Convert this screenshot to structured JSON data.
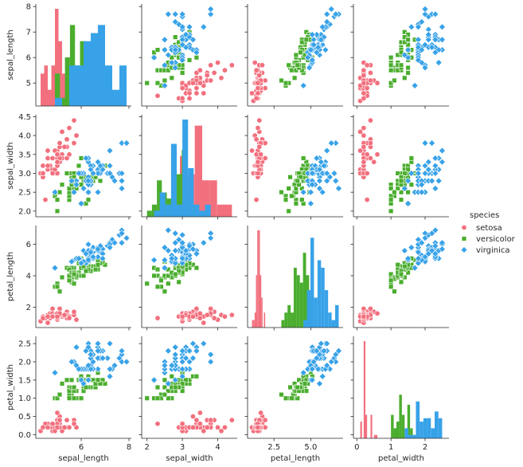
{
  "chart_data": {
    "type": "pairplot",
    "variables": [
      "sepal_length",
      "sepal_width",
      "petal_length",
      "petal_width"
    ],
    "hue": "species",
    "legend": {
      "title": "species",
      "position": "right",
      "entries": [
        {
          "name": "setosa",
          "color": "#f2707e",
          "marker": "circle"
        },
        {
          "name": "versicolor",
          "color": "#4aad2e",
          "marker": "square"
        },
        {
          "name": "virginica",
          "color": "#38a2e8",
          "marker": "diamond"
        }
      ]
    },
    "axes": {
      "sepal_length": {
        "range": [
          4.1,
          8.1
        ],
        "ticks": [
          6,
          8
        ],
        "tick_labels": [
          "6",
          "8"
        ],
        "y_range": [
          4.1,
          8.1
        ],
        "y_ticks": [
          5,
          6,
          7,
          8
        ],
        "y_tick_labels": [
          "5",
          "6",
          "7",
          "8"
        ]
      },
      "sepal_width": {
        "range": [
          1.85,
          4.55
        ],
        "ticks": [
          2,
          3,
          4
        ],
        "tick_labels": [
          "2",
          "3",
          "4"
        ],
        "y_range": [
          1.85,
          4.55
        ],
        "y_ticks": [
          2.0,
          2.5,
          3.0,
          3.5,
          4.0,
          4.5
        ],
        "y_tick_labels": [
          "2.0",
          "2.5",
          "3.0",
          "3.5",
          "4.0",
          "4.5"
        ]
      },
      "petal_length": {
        "range": [
          0.7,
          7.2
        ],
        "ticks": [
          2.5,
          5.0
        ],
        "tick_labels": [
          "2.5",
          "5.0"
        ],
        "y_range": [
          0.7,
          7.2
        ],
        "y_ticks": [
          2,
          4,
          6
        ],
        "y_tick_labels": [
          "2",
          "4",
          "6"
        ]
      },
      "petal_width": {
        "range": [
          -0.1,
          2.7
        ],
        "ticks": [
          0,
          1,
          2
        ],
        "tick_labels": [
          "0",
          "1",
          "2"
        ],
        "y_range": [
          -0.1,
          2.7
        ],
        "y_ticks": [
          0.0,
          0.5,
          1.0,
          1.5,
          2.0,
          2.5
        ],
        "y_tick_labels": [
          "0.0",
          "0.5",
          "1.0",
          "1.5",
          "2.0",
          "2.5"
        ]
      }
    },
    "histogram_bins": 10,
    "series": [
      {
        "name": "setosa",
        "rows": [
          [
            5.1,
            3.5,
            1.4,
            0.2
          ],
          [
            4.9,
            3.0,
            1.4,
            0.2
          ],
          [
            4.7,
            3.2,
            1.3,
            0.2
          ],
          [
            4.6,
            3.1,
            1.5,
            0.2
          ],
          [
            5.0,
            3.6,
            1.4,
            0.2
          ],
          [
            5.4,
            3.9,
            1.7,
            0.4
          ],
          [
            4.6,
            3.4,
            1.4,
            0.3
          ],
          [
            5.0,
            3.4,
            1.5,
            0.2
          ],
          [
            4.4,
            2.9,
            1.4,
            0.2
          ],
          [
            4.9,
            3.1,
            1.5,
            0.1
          ],
          [
            5.4,
            3.7,
            1.5,
            0.2
          ],
          [
            4.8,
            3.4,
            1.6,
            0.2
          ],
          [
            4.8,
            3.0,
            1.4,
            0.1
          ],
          [
            4.3,
            3.0,
            1.1,
            0.1
          ],
          [
            5.8,
            4.0,
            1.2,
            0.2
          ],
          [
            5.7,
            4.4,
            1.5,
            0.4
          ],
          [
            5.4,
            3.9,
            1.3,
            0.4
          ],
          [
            5.1,
            3.5,
            1.4,
            0.3
          ],
          [
            5.7,
            3.8,
            1.7,
            0.3
          ],
          [
            5.1,
            3.8,
            1.5,
            0.3
          ],
          [
            5.4,
            3.4,
            1.7,
            0.2
          ],
          [
            5.1,
            3.7,
            1.5,
            0.4
          ],
          [
            4.6,
            3.6,
            1.0,
            0.2
          ],
          [
            5.1,
            3.3,
            1.7,
            0.5
          ],
          [
            4.8,
            3.4,
            1.9,
            0.2
          ],
          [
            5.0,
            3.0,
            1.6,
            0.2
          ],
          [
            5.0,
            3.4,
            1.6,
            0.4
          ],
          [
            5.2,
            3.5,
            1.5,
            0.2
          ],
          [
            5.2,
            3.4,
            1.4,
            0.2
          ],
          [
            4.7,
            3.2,
            1.6,
            0.2
          ],
          [
            4.8,
            3.1,
            1.6,
            0.2
          ],
          [
            5.4,
            3.4,
            1.5,
            0.4
          ],
          [
            5.2,
            4.1,
            1.5,
            0.1
          ],
          [
            5.5,
            4.2,
            1.4,
            0.2
          ],
          [
            4.9,
            3.1,
            1.5,
            0.2
          ],
          [
            5.0,
            3.2,
            1.2,
            0.2
          ],
          [
            5.5,
            3.5,
            1.3,
            0.2
          ],
          [
            4.9,
            3.6,
            1.4,
            0.1
          ],
          [
            4.4,
            3.0,
            1.3,
            0.2
          ],
          [
            5.1,
            3.4,
            1.5,
            0.2
          ],
          [
            5.0,
            3.5,
            1.3,
            0.3
          ],
          [
            4.5,
            2.3,
            1.3,
            0.3
          ],
          [
            4.4,
            3.2,
            1.3,
            0.2
          ],
          [
            5.0,
            3.5,
            1.6,
            0.6
          ],
          [
            5.1,
            3.8,
            1.9,
            0.4
          ],
          [
            4.8,
            3.0,
            1.4,
            0.3
          ],
          [
            5.1,
            3.8,
            1.6,
            0.2
          ],
          [
            4.6,
            3.2,
            1.4,
            0.2
          ],
          [
            5.3,
            3.7,
            1.5,
            0.2
          ],
          [
            5.0,
            3.3,
            1.4,
            0.2
          ]
        ]
      },
      {
        "name": "versicolor",
        "rows": [
          [
            7.0,
            3.2,
            4.7,
            1.4
          ],
          [
            6.4,
            3.2,
            4.5,
            1.5
          ],
          [
            6.9,
            3.1,
            4.9,
            1.5
          ],
          [
            5.5,
            2.3,
            4.0,
            1.3
          ],
          [
            6.5,
            2.8,
            4.6,
            1.5
          ],
          [
            5.7,
            2.8,
            4.5,
            1.3
          ],
          [
            6.3,
            3.3,
            4.7,
            1.6
          ],
          [
            4.9,
            2.4,
            3.3,
            1.0
          ],
          [
            6.6,
            2.9,
            4.6,
            1.3
          ],
          [
            5.2,
            2.7,
            3.9,
            1.4
          ],
          [
            5.0,
            2.0,
            3.5,
            1.0
          ],
          [
            5.9,
            3.0,
            4.2,
            1.5
          ],
          [
            6.0,
            2.2,
            4.0,
            1.0
          ],
          [
            6.1,
            2.9,
            4.7,
            1.4
          ],
          [
            5.6,
            2.9,
            3.6,
            1.3
          ],
          [
            6.7,
            3.1,
            4.4,
            1.4
          ],
          [
            5.6,
            3.0,
            4.5,
            1.5
          ],
          [
            5.8,
            2.7,
            4.1,
            1.0
          ],
          [
            6.2,
            2.2,
            4.5,
            1.5
          ],
          [
            5.6,
            2.5,
            3.9,
            1.1
          ],
          [
            5.9,
            3.2,
            4.8,
            1.8
          ],
          [
            6.1,
            2.8,
            4.0,
            1.3
          ],
          [
            6.3,
            2.5,
            4.9,
            1.5
          ],
          [
            6.1,
            2.8,
            4.7,
            1.2
          ],
          [
            6.4,
            2.9,
            4.3,
            1.3
          ],
          [
            6.6,
            3.0,
            4.4,
            1.4
          ],
          [
            6.8,
            2.8,
            4.8,
            1.4
          ],
          [
            6.7,
            3.0,
            5.0,
            1.7
          ],
          [
            6.0,
            2.9,
            4.5,
            1.5
          ],
          [
            5.7,
            2.6,
            3.5,
            1.0
          ],
          [
            5.5,
            2.4,
            3.8,
            1.1
          ],
          [
            5.5,
            2.4,
            3.7,
            1.0
          ],
          [
            5.8,
            2.7,
            3.9,
            1.2
          ],
          [
            6.0,
            2.7,
            5.1,
            1.6
          ],
          [
            5.4,
            3.0,
            4.5,
            1.5
          ],
          [
            6.0,
            3.4,
            4.5,
            1.6
          ],
          [
            6.7,
            3.1,
            4.7,
            1.5
          ],
          [
            6.3,
            2.3,
            4.4,
            1.3
          ],
          [
            5.6,
            3.0,
            4.1,
            1.3
          ],
          [
            5.5,
            2.5,
            4.0,
            1.3
          ],
          [
            5.5,
            2.6,
            4.4,
            1.2
          ],
          [
            6.1,
            3.0,
            4.6,
            1.4
          ],
          [
            5.8,
            2.6,
            4.0,
            1.2
          ],
          [
            5.0,
            2.3,
            3.3,
            1.0
          ],
          [
            5.6,
            2.7,
            4.2,
            1.3
          ],
          [
            5.7,
            3.0,
            4.2,
            1.2
          ],
          [
            5.7,
            2.9,
            4.2,
            1.3
          ],
          [
            6.2,
            2.9,
            4.3,
            1.3
          ],
          [
            5.1,
            2.5,
            3.0,
            1.1
          ],
          [
            5.7,
            2.8,
            4.1,
            1.3
          ]
        ]
      },
      {
        "name": "virginica",
        "rows": [
          [
            6.3,
            3.3,
            6.0,
            2.5
          ],
          [
            5.8,
            2.7,
            5.1,
            1.9
          ],
          [
            7.1,
            3.0,
            5.9,
            2.1
          ],
          [
            6.3,
            2.9,
            5.6,
            1.8
          ],
          [
            6.5,
            3.0,
            5.8,
            2.2
          ],
          [
            7.6,
            3.0,
            6.6,
            2.1
          ],
          [
            4.9,
            2.5,
            4.5,
            1.7
          ],
          [
            7.3,
            2.9,
            6.3,
            1.8
          ],
          [
            6.7,
            2.5,
            5.8,
            1.8
          ],
          [
            7.2,
            3.6,
            6.1,
            2.5
          ],
          [
            6.5,
            3.2,
            5.1,
            2.0
          ],
          [
            6.4,
            2.7,
            5.3,
            1.9
          ],
          [
            6.8,
            3.0,
            5.5,
            2.1
          ],
          [
            5.7,
            2.5,
            5.0,
            2.0
          ],
          [
            5.8,
            2.8,
            5.1,
            2.4
          ],
          [
            6.4,
            3.2,
            5.3,
            2.3
          ],
          [
            6.5,
            3.0,
            5.5,
            1.8
          ],
          [
            7.7,
            3.8,
            6.7,
            2.2
          ],
          [
            7.7,
            2.6,
            6.9,
            2.3
          ],
          [
            6.0,
            2.2,
            5.0,
            1.5
          ],
          [
            6.9,
            3.2,
            5.7,
            2.3
          ],
          [
            5.6,
            2.8,
            4.9,
            2.0
          ],
          [
            7.7,
            2.8,
            6.7,
            2.0
          ],
          [
            6.3,
            2.7,
            4.9,
            1.8
          ],
          [
            6.7,
            3.3,
            5.7,
            2.1
          ],
          [
            7.2,
            3.2,
            6.0,
            1.8
          ],
          [
            6.2,
            2.8,
            4.8,
            1.8
          ],
          [
            6.1,
            3.0,
            4.9,
            1.8
          ],
          [
            6.4,
            2.8,
            5.6,
            2.1
          ],
          [
            7.2,
            3.0,
            5.8,
            1.6
          ],
          [
            7.4,
            2.8,
            6.1,
            1.9
          ],
          [
            7.9,
            3.8,
            6.4,
            2.0
          ],
          [
            6.4,
            2.8,
            5.6,
            2.2
          ],
          [
            6.3,
            2.8,
            5.1,
            1.5
          ],
          [
            6.1,
            2.6,
            5.6,
            1.4
          ],
          [
            7.7,
            3.0,
            6.1,
            2.3
          ],
          [
            6.3,
            3.4,
            5.6,
            2.4
          ],
          [
            6.4,
            3.1,
            5.5,
            1.8
          ],
          [
            6.0,
            3.0,
            4.8,
            1.8
          ],
          [
            6.9,
            3.1,
            5.4,
            2.1
          ],
          [
            6.7,
            3.1,
            5.6,
            2.4
          ],
          [
            6.9,
            3.1,
            5.1,
            2.3
          ],
          [
            5.8,
            2.7,
            5.1,
            1.9
          ],
          [
            6.8,
            3.2,
            5.9,
            2.3
          ],
          [
            6.7,
            3.3,
            5.7,
            2.5
          ],
          [
            6.7,
            3.0,
            5.2,
            2.3
          ],
          [
            6.3,
            2.5,
            5.0,
            1.9
          ],
          [
            6.5,
            3.0,
            5.2,
            2.0
          ],
          [
            6.2,
            3.4,
            5.4,
            2.3
          ],
          [
            5.9,
            3.0,
            5.1,
            1.8
          ]
        ]
      }
    ]
  }
}
